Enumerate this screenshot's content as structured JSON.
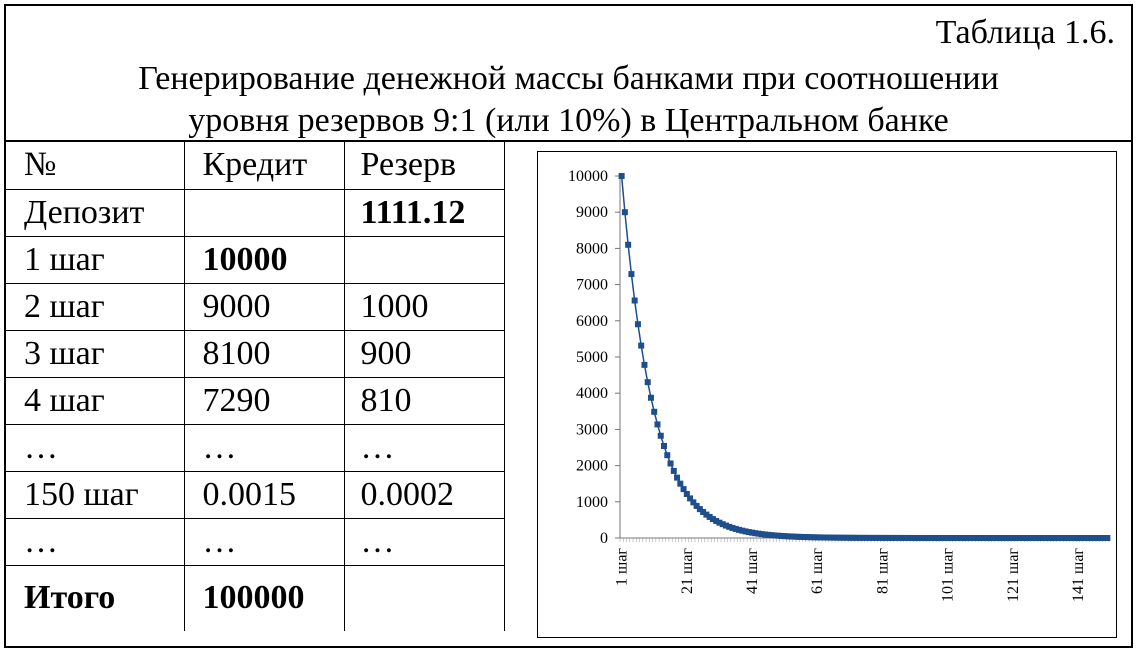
{
  "caption": {
    "table_number": "Таблица 1.6.",
    "title_line1": "Генерирование денежной массы банками при соотношении",
    "title_line2": "уровня резервов 9:1 (или 10%) в Центральном банке"
  },
  "table": {
    "headers": [
      "№",
      "Кредит",
      "Резерв"
    ],
    "rows": [
      {
        "label": "Депозит",
        "credit": "",
        "reserve": "1111.12"
      },
      {
        "label": "1 шаг",
        "credit": "10000",
        "reserve": ""
      },
      {
        "label": "2 шаг",
        "credit": "9000",
        "reserve": "1000"
      },
      {
        "label": "3 шаг",
        "credit": "8100",
        "reserve": "900"
      },
      {
        "label": "4 шаг",
        "credit": "7290",
        "reserve": "810"
      },
      {
        "label": "…",
        "credit": "…",
        "reserve": "…"
      },
      {
        "label": "150 шаг",
        "credit": "0.0015",
        "reserve": "0.0002"
      },
      {
        "label": "…",
        "credit": "…",
        "reserve": "…"
      },
      {
        "label": "Итого",
        "credit": "100000",
        "reserve": ""
      }
    ]
  },
  "chart_data": {
    "type": "line",
    "series": [
      {
        "start": 10000,
        "ratio": 0.9,
        "steps": 150,
        "marker": "square",
        "color": "#1F4E8C"
      }
    ],
    "x_start": 1,
    "x_end": 150,
    "xticks": [
      "1 шаг",
      "21 шаг",
      "41 шаг",
      "61 шаг",
      "81 шаг",
      "101 шаг",
      "121 шаг",
      "141 шаг"
    ],
    "yticks": [
      "0",
      "1000",
      "2000",
      "3000",
      "4000",
      "5000",
      "6000",
      "7000",
      "8000",
      "9000",
      "10000"
    ],
    "ylim": [
      0,
      10000
    ],
    "grid": false,
    "legend": false
  }
}
